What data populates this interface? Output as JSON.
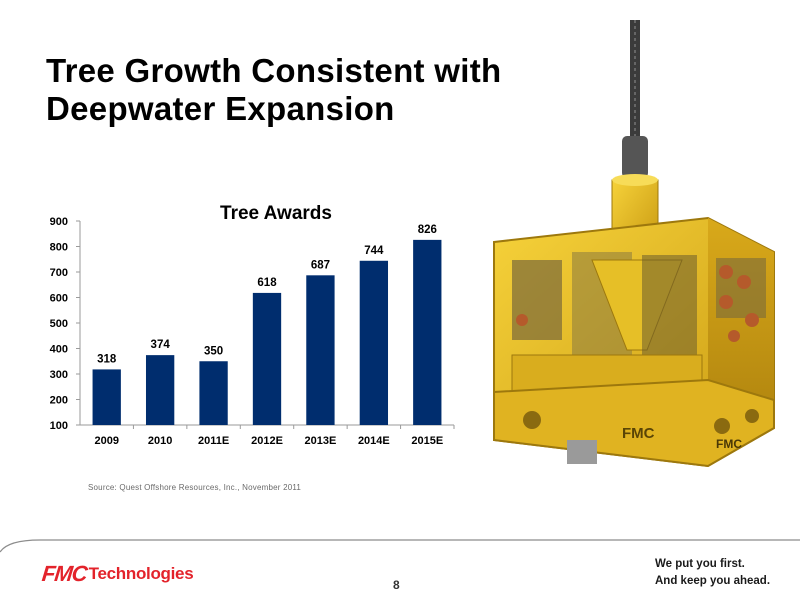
{
  "slide": {
    "title_line1": "Tree Growth Consistent with",
    "title_line2": "Deepwater Expansion",
    "source": "Source:  Quest Offshore Resources, Inc., November 2011",
    "page_number": "8"
  },
  "footer": {
    "logo_fmc": "FMC",
    "logo_technologies": "Technologies",
    "tagline_line1": "We put you first.",
    "tagline_line2": "And keep you ahead.",
    "logo_color": "#e3232b"
  },
  "image": {
    "subject": "yellow subsea-tree-icon",
    "marking": "FMC"
  },
  "chart_data": {
    "type": "bar",
    "title": "Tree Awards",
    "categories": [
      "2009",
      "2010",
      "2011E",
      "2012E",
      "2013E",
      "2014E",
      "2015E"
    ],
    "values": [
      318,
      374,
      350,
      618,
      687,
      744,
      826
    ],
    "data_labels": [
      "318",
      "374",
      "350",
      "618",
      "687",
      "744",
      "826"
    ],
    "y_ticks": [
      "100",
      "200",
      "300",
      "400",
      "500",
      "600",
      "700",
      "800",
      "900"
    ],
    "ylim": [
      100,
      900
    ],
    "xlabel": "",
    "ylabel": "",
    "grid": false,
    "legend": "none",
    "bar_color": "#002d6e"
  }
}
